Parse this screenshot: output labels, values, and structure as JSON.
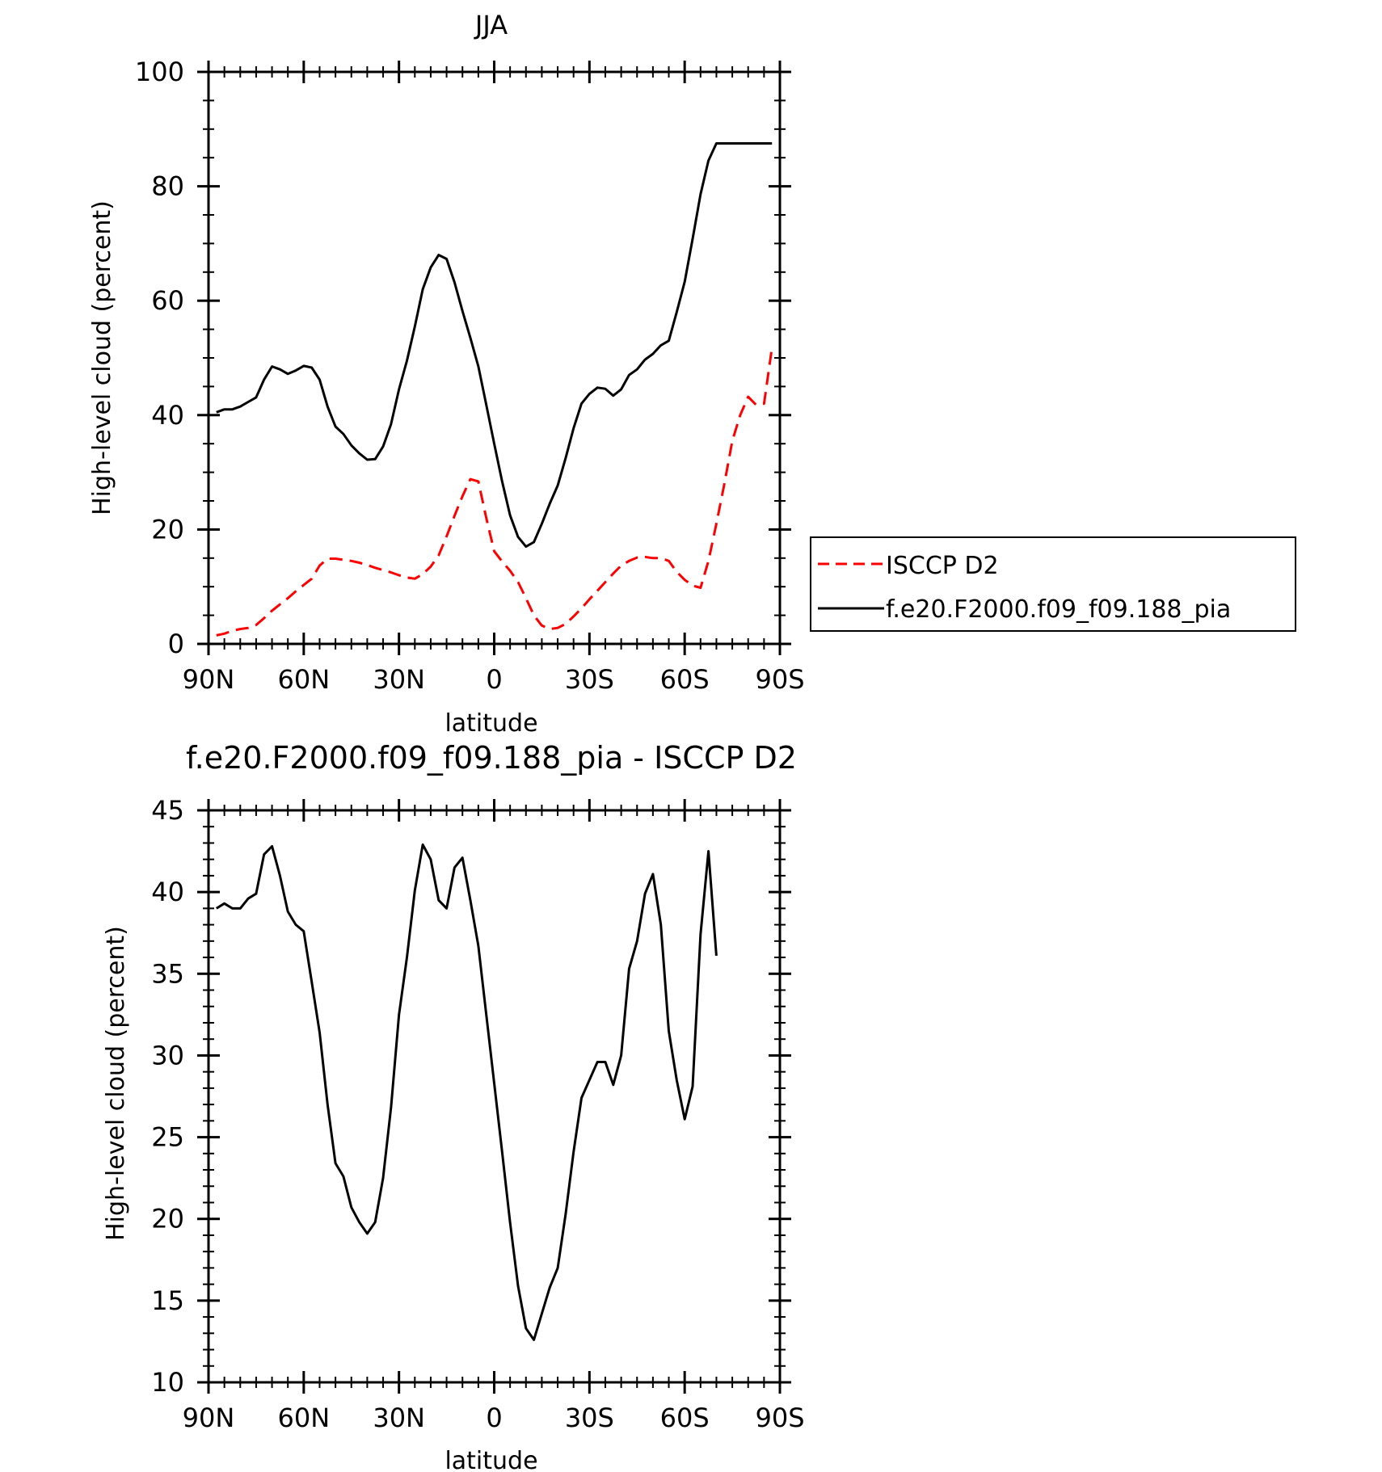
{
  "chart_data": [
    {
      "type": "line",
      "title": "JJA",
      "xlabel": "latitude",
      "ylabel": "High-level cloud (percent)",
      "xlim": [
        90,
        -90
      ],
      "ylim": [
        0,
        100
      ],
      "xticks": [
        90,
        60,
        30,
        0,
        -30,
        -60,
        -90
      ],
      "xtick_labels": [
        "90N",
        "60N",
        "30N",
        "0",
        "30S",
        "60S",
        "90S"
      ],
      "yticks": [
        0,
        20,
        40,
        60,
        80,
        100
      ],
      "ytick_labels": [
        "0",
        "20",
        "40",
        "60",
        "80",
        "100"
      ],
      "grid": false,
      "legend": "right",
      "series": [
        {
          "name": "ISCCP D2",
          "color": "#ff0000",
          "dash": "dashed",
          "x": [
            87.5,
            85,
            82.5,
            80,
            77.5,
            75,
            72.5,
            70,
            67.5,
            65,
            62.5,
            60,
            57.5,
            55,
            52.5,
            50,
            47.5,
            45,
            42.5,
            40,
            37.5,
            35,
            32.5,
            30,
            27.5,
            25,
            22.5,
            20,
            17.5,
            15,
            12.5,
            10,
            7.5,
            5,
            2.5,
            0,
            -2.5,
            -5,
            -7.5,
            -10,
            -12.5,
            -15,
            -17.5,
            -20,
            -22.5,
            -25,
            -27.5,
            -30,
            -32.5,
            -35,
            -37.5,
            -40,
            -42.5,
            -45,
            -47.5,
            -50,
            -52.5,
            -55,
            -57.5,
            -60,
            -62.5,
            -65,
            -67.5,
            -70,
            -72.5,
            -75,
            -77.5,
            -80,
            -82.5,
            -85,
            -87.5
          ],
          "y": [
            1.5,
            1.8,
            2.3,
            2.6,
            2.8,
            3.3,
            4.5,
            5.8,
            6.9,
            8.0,
            9.2,
            10.3,
            11.4,
            13.7,
            14.9,
            14.9,
            14.7,
            14.5,
            14.2,
            13.8,
            13.3,
            12.9,
            12.5,
            12.0,
            11.6,
            11.4,
            12.2,
            13.5,
            15.5,
            18.8,
            22.4,
            25.8,
            28.8,
            28.4,
            22.0,
            16.2,
            14.4,
            12.8,
            10.8,
            8.0,
            5.0,
            3.2,
            2.6,
            2.8,
            3.5,
            4.8,
            6.2,
            7.8,
            9.3,
            10.8,
            12.3,
            13.7,
            14.5,
            15.1,
            15.2,
            15.0,
            15.0,
            14.5,
            12.6,
            11.2,
            10.2,
            9.8,
            14.5,
            21.0,
            28.0,
            35.5,
            40.0,
            43.2,
            41.8,
            42.0,
            51.8
          ]
        },
        {
          "name": "f.e20.F2000.f09_f09.188_pia",
          "color": "#000000",
          "dash": "solid",
          "x": [
            87.5,
            85,
            82.5,
            80,
            77.5,
            75,
            72.5,
            70,
            67.5,
            65,
            62.5,
            60,
            57.5,
            55,
            52.5,
            50,
            47.5,
            45,
            42.5,
            40,
            37.5,
            35,
            32.5,
            30,
            27.5,
            25,
            22.5,
            20,
            17.5,
            15,
            12.5,
            10,
            7.5,
            5,
            2.5,
            0,
            -2.5,
            -5,
            -7.5,
            -10,
            -12.5,
            -15,
            -17.5,
            -20,
            -22.5,
            -25,
            -27.5,
            -30,
            -32.5,
            -35,
            -37.5,
            -40,
            -42.5,
            -45,
            -47.5,
            -50,
            -52.5,
            -55,
            -57.5,
            -60,
            -62.5,
            -65,
            -67.5,
            -70,
            -72.5,
            -75,
            -77.5,
            -80,
            -82.5,
            -85,
            -87.5
          ],
          "y": [
            40.5,
            41.0,
            41.0,
            41.5,
            42.3,
            43.1,
            46.2,
            48.5,
            48.0,
            47.2,
            47.8,
            48.6,
            48.3,
            46.2,
            41.5,
            38.0,
            36.7,
            34.7,
            33.3,
            32.2,
            32.3,
            34.5,
            38.4,
            44.5,
            49.5,
            55.5,
            62.0,
            65.8,
            68.0,
            67.3,
            63.2,
            58.2,
            53.5,
            48.5,
            41.8,
            35.0,
            28.4,
            22.5,
            18.7,
            17.0,
            17.8,
            21.0,
            24.5,
            27.7,
            32.5,
            37.7,
            42.0,
            43.7,
            44.8,
            44.6,
            43.4,
            44.5,
            47.0,
            48.0,
            49.7,
            50.7,
            52.2,
            53.0,
            58.0,
            63.3,
            70.8,
            78.6,
            84.5,
            87.5,
            87.5,
            87.5,
            87.5,
            87.5,
            87.5,
            87.5,
            87.5
          ]
        }
      ]
    },
    {
      "type": "line",
      "title": "f.e20.F2000.f09_f09.188_pia - ISCCP D2",
      "xlabel": "latitude",
      "ylabel": "High-level cloud (percent)",
      "xlim": [
        90,
        -90
      ],
      "ylim": [
        10,
        45
      ],
      "xticks": [
        90,
        60,
        30,
        0,
        -30,
        -60,
        -90
      ],
      "xtick_labels": [
        "90N",
        "60N",
        "30N",
        "0",
        "30S",
        "60S",
        "90S"
      ],
      "yticks": [
        10,
        15,
        20,
        25,
        30,
        35,
        40,
        45
      ],
      "ytick_labels": [
        "10",
        "15",
        "20",
        "25",
        "30",
        "35",
        "40",
        "45"
      ],
      "grid": false,
      "series": [
        {
          "color": "#000000",
          "dash": "solid",
          "x": [
            87.5,
            85,
            82.5,
            80,
            77.5,
            75,
            72.5,
            70,
            67.5,
            65,
            62.5,
            60,
            57.5,
            55,
            52.5,
            50,
            47.5,
            45,
            42.5,
            40,
            37.5,
            35,
            32.5,
            30,
            27.5,
            25,
            22.5,
            20,
            17.5,
            15,
            12.5,
            10,
            7.5,
            5,
            2.5,
            0,
            -2.5,
            -5,
            -7.5,
            -10,
            -12.5,
            -15,
            -17.5,
            -20,
            -22.5,
            -25,
            -27.5,
            -30,
            -32.5,
            -35,
            -37.5,
            -40,
            -42.5,
            -45,
            -47.5,
            -50,
            -52.5,
            -55,
            -57.5,
            -60,
            -62.5,
            -65,
            -67.5,
            -70,
            -72.5,
            -75,
            -77.5,
            -80,
            -82.5,
            -85,
            -87.5
          ],
          "y": [
            39.0,
            39.3,
            39.0,
            39.0,
            39.6,
            39.9,
            42.3,
            42.8,
            41.0,
            38.8,
            38.0,
            37.6,
            34.5,
            31.4,
            27.0,
            23.4,
            22.6,
            20.7,
            19.8,
            19.1,
            19.8,
            22.5,
            26.8,
            32.5,
            36.0,
            40.1,
            42.9,
            42.0,
            39.5,
            39.0,
            41.5,
            42.1,
            39.5,
            36.7,
            32.5,
            28.3,
            24.1,
            19.8,
            15.9,
            13.3,
            12.6,
            14.2,
            15.8,
            17.0,
            20.3,
            24.1,
            27.4,
            28.5,
            29.6,
            29.6,
            28.2,
            30.0,
            35.3,
            37.0,
            39.9,
            41.1,
            38.0,
            31.5,
            28.5,
            26.1,
            28.1,
            37.4,
            42.5,
            36.1,
            null,
            null,
            null,
            null,
            null,
            null,
            null
          ]
        }
      ]
    }
  ]
}
